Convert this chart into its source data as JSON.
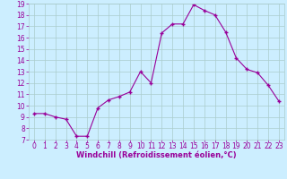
{
  "x": [
    0,
    1,
    2,
    3,
    4,
    5,
    6,
    7,
    8,
    9,
    10,
    11,
    12,
    13,
    14,
    15,
    16,
    17,
    18,
    19,
    20,
    21,
    22,
    23
  ],
  "y": [
    9.3,
    9.3,
    9.0,
    8.8,
    7.3,
    7.3,
    9.8,
    10.5,
    10.8,
    11.2,
    13.0,
    12.0,
    16.4,
    17.2,
    17.2,
    18.9,
    18.4,
    18.0,
    16.5,
    14.2,
    13.2,
    12.9,
    11.8,
    10.4
  ],
  "ylim": [
    7,
    19
  ],
  "yticks": [
    7,
    8,
    9,
    10,
    11,
    12,
    13,
    14,
    15,
    16,
    17,
    18,
    19
  ],
  "xticks": [
    0,
    1,
    2,
    3,
    4,
    5,
    6,
    7,
    8,
    9,
    10,
    11,
    12,
    13,
    14,
    15,
    16,
    17,
    18,
    19,
    20,
    21,
    22,
    23
  ],
  "xlabel": "Windchill (Refroidissement éolien,°C)",
  "line_color": "#990099",
  "marker": "+",
  "bg_color": "#cceeff",
  "grid_color": "#aacccc",
  "axis_label_color": "#990099",
  "tick_label_color": "#990099",
  "tick_fontsize": 5.5,
  "xlabel_fontsize": 6.0
}
